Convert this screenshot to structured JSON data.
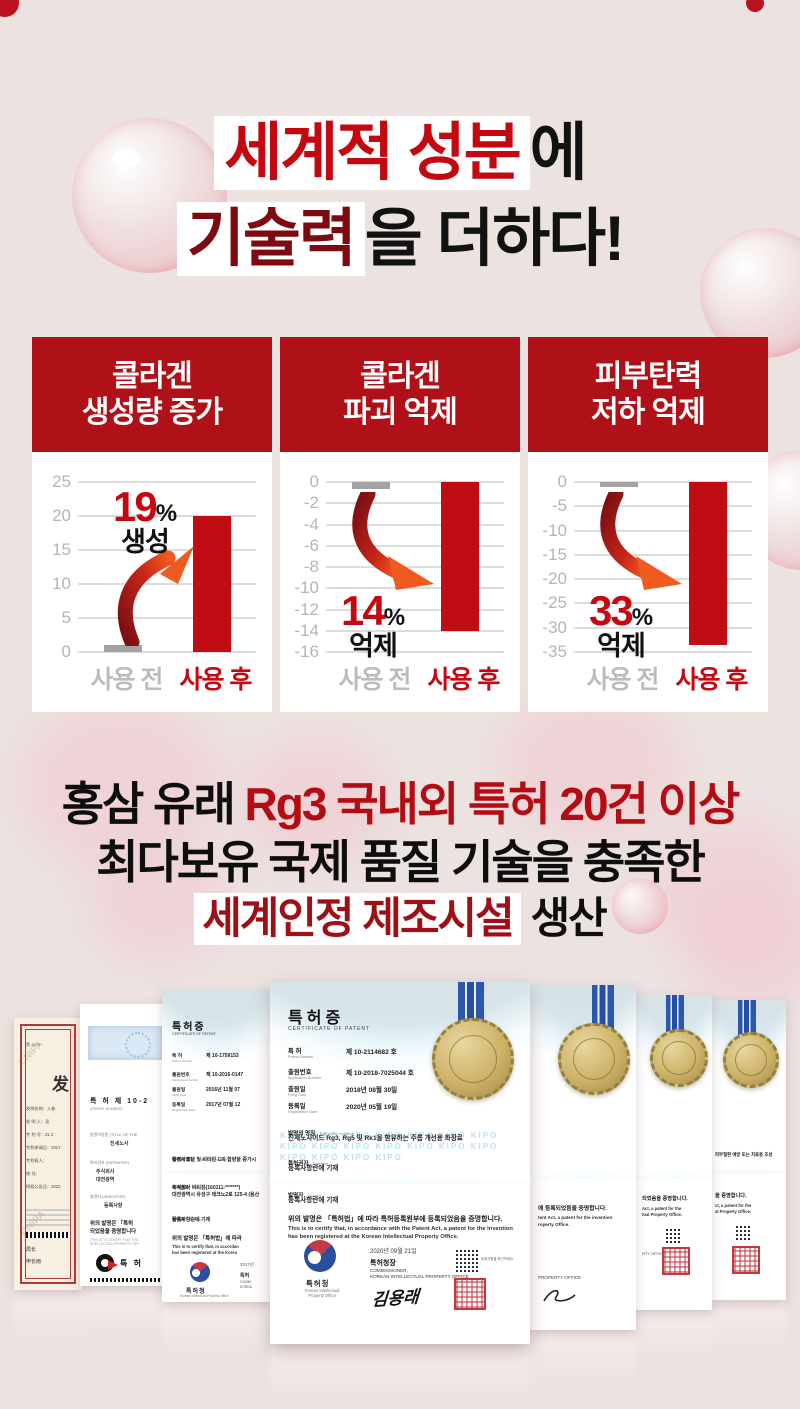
{
  "colors": {
    "page_bg": "#ece3e1",
    "card_header_red": "#b01118",
    "bar_red": "#c20c13",
    "bar_gray": "#a3a3a3",
    "headline_red": "#c40810",
    "headline_maroon": "#7d0a10",
    "claims_red": "#b30d13",
    "ribbon_blue": "#2b58ac",
    "medal_gold": "#cdb269"
  },
  "headline": {
    "line1_highlight": "세계적 성분",
    "line1_rest": "에",
    "line2_highlight": "기술력",
    "line2_rest": "을 더하다!"
  },
  "chart_data": [
    {
      "type": "bar",
      "card_title_line1": "콜라겐",
      "card_title_line2": "생성량 증가",
      "categories": [
        "사용 전",
        "사용 후"
      ],
      "values": [
        1,
        20
      ],
      "ylim": [
        0,
        25
      ],
      "yticks": [
        25,
        20,
        15,
        10,
        5,
        0
      ],
      "grid": true,
      "bar_colors": [
        "#a3a3a3",
        "#c20c13"
      ],
      "annotation": {
        "pct": "19",
        "unit": "%",
        "label": "생성"
      },
      "arrow": "up"
    },
    {
      "type": "bar",
      "card_title_line1": "콜라겐",
      "card_title_line2": "파괴 억제",
      "categories": [
        "사용 전",
        "사용 후"
      ],
      "values": [
        -0.7,
        -14
      ],
      "ylim": [
        -16,
        0
      ],
      "yticks": [
        0,
        -2,
        -4,
        -6,
        -8,
        -10,
        -12,
        -14,
        -16
      ],
      "grid": true,
      "bar_colors": [
        "#a3a3a3",
        "#c20c13"
      ],
      "annotation": {
        "pct": "14",
        "unit": "%",
        "label": "억제"
      },
      "arrow": "down"
    },
    {
      "type": "bar",
      "card_title_line1": "피부탄력",
      "card_title_line2": "저하 억제",
      "categories": [
        "사용 전",
        "사용 후"
      ],
      "values": [
        -1,
        -33.5
      ],
      "ylim": [
        -35,
        0
      ],
      "yticks": [
        0,
        -5,
        -10,
        -15,
        -20,
        -25,
        -30,
        -35
      ],
      "grid": true,
      "bar_colors": [
        "#a3a3a3",
        "#c20c13"
      ],
      "annotation": {
        "pct": "33",
        "unit": "%",
        "label": "억제"
      },
      "arrow": "down"
    }
  ],
  "claims": {
    "line1_black": "홍삼 유래 ",
    "line1_red": "Rg3 국내외 특허 20건 이상",
    "line2": "최다보유 국제 품질 기술을 충족한",
    "line3_red": "세계인정 제조시설",
    "line3_black": " 생산"
  },
  "certificates": {
    "c1": {
      "cert_no": "第 4679",
      "big_char": "发",
      "rows": [
        "发明名称：人参",
        "发 明 人：吴",
        "专 利 号：ZL 2",
        "专利申请日：2017",
        "专利权人：",
        "地 址：",
        "授权公告日：2022"
      ],
      "footer_title": "局长",
      "footer_name": "申长雨",
      "watermark": "CNIPA"
    },
    "c2": {
      "patent_label": "특 허",
      "patent_no": "제 10-2",
      "patent_en": "(PATENT NUMBER)",
      "r1k": "발명의명칭 (TITLE OF THE",
      "r1v": "진세노사",
      "r2k": "특허권자 (PATENTEE)",
      "r2v1": "주식회사",
      "r2v2": "대전광역",
      "r3k": "발명자 (INVENTOR)",
      "r3v": "등록사항",
      "stmt1": "위의 발명은 「특허",
      "stmt2": "되었음을 증명합니다",
      "stmt_en": "(THIS IS TO CERTIFY THAT THE INTELLECTUAL PROPERTY OFF",
      "logo_text": "특 허"
    },
    "c3": {
      "heading": "특허증",
      "subheading": "CERTIFICATE OF PATENT",
      "fields": [
        {
          "k": "특 허",
          "e": "Patent Number",
          "v": "제 10-1759153"
        },
        {
          "k": "출원번호",
          "e": "Application Number",
          "v": "제 10-2016-0147"
        },
        {
          "k": "출원일",
          "e": "Filing Date",
          "v": "2016년 11월 07"
        },
        {
          "k": "등록일",
          "e": "Registration Date",
          "v": "2017년 07월 12"
        }
      ],
      "title_k": "발명의 명칭",
      "title_e": "Title of the Invention",
      "title_v": "특이사포닌 및 비타민 C의 함량을 증가시",
      "patentee_k": "특허권자",
      "patentee_e": "Patentee",
      "patentee_v1": "주식회사 비티진(160111-*******)",
      "patentee_v2": "대전광역시 유성구 테크노2로 125-4 (용산",
      "inventor_k": "발명자",
      "inventor_e": "Inventor",
      "inventor_v": "등록사항란에 기재",
      "stmt1": "위의 발명은 「특허법」에 따라",
      "stmt_en1": "This is to certify that, in accordan",
      "stmt_en2": "has been registered at the Korea",
      "date": "2017년",
      "comm1": "특허",
      "comm2": "COMM",
      "comm3": "KOREA",
      "office_ko": "특허청",
      "office_en1": "Korean Intellectual",
      "office_en2": "Property Office"
    },
    "c4": {
      "heading": "특허증",
      "subheading": "CERTIFICATE OF PATENT",
      "fields": [
        {
          "k": "특 허",
          "e": "Patent Number",
          "v": "제 10-2114682 호"
        },
        {
          "k": "출원번호",
          "e": "Application Number",
          "v": "제 10-2018-7025044 호"
        },
        {
          "k": "출원일",
          "e": "Filing Date",
          "v": "2018년 08월 30일"
        },
        {
          "k": "등록일",
          "e": "Registration Date",
          "v": "2020년 05월 19일"
        }
      ],
      "title_k": "발명의 명칭",
      "title_e": "Title of the Invention",
      "title_v": "진세노사이드 Rg3, Rg5 및 Rk1을 함유하는 주름 개선용 화장료",
      "patentee_k": "특허권자",
      "patentee_e": "Patentee",
      "patentee_v": "등록사항란에 기재",
      "inventor_k": "발명자",
      "inventor_e": "Inventor",
      "inventor_v": "등록사항란에 기재",
      "stmt_ko": "위의 발명은 「특허법」에 따라 특허등록원부에 등록되었음을 증명합니다.",
      "stmt_en": "This is to certify that, in accordance with the Patent Act, a patent for the invention has been registered at the Korean Intellectual Property Office.",
      "date": "2020년 09월 21일",
      "comm_ko": "특허청장",
      "comm_en1": "COMMISSIONER,",
      "comm_en2": "KOREAN INTELLECTUAL PROPERTY OFFICE",
      "signature": "김용래",
      "office_ko": "특허청",
      "office_en1": "Korean Intellectual",
      "office_en2": "Property Office",
      "qr_caption": "등록사항을 확인하세요",
      "watermark": "KIPO KIPO KIPO KIPO KIPO KIPO KIPO KIPO KIPO KIPO KIPO KIPO KIPO KIPO KIPO KIPO KIPO KIPO"
    },
    "c5": {
      "ko": "에 등록되었음을 증명합니다.",
      "en1": "tent Act, a patent for the invention",
      "en2": "roperty Office.",
      "office": "PROPERTY OFFICE"
    },
    "c6": {
      "ko": "되었음을 증명합니다.",
      "en1": "Act, a patent for the",
      "en2": "tual Property Office.",
      "office": "RTY OFFICE"
    },
    "c7": {
      "ko": "을 증명합니다.",
      "en1": "ct, a patent for the",
      "en2": "al Property Office.",
      "title": "피부질환 예방 또는 치료용 조성"
    }
  }
}
